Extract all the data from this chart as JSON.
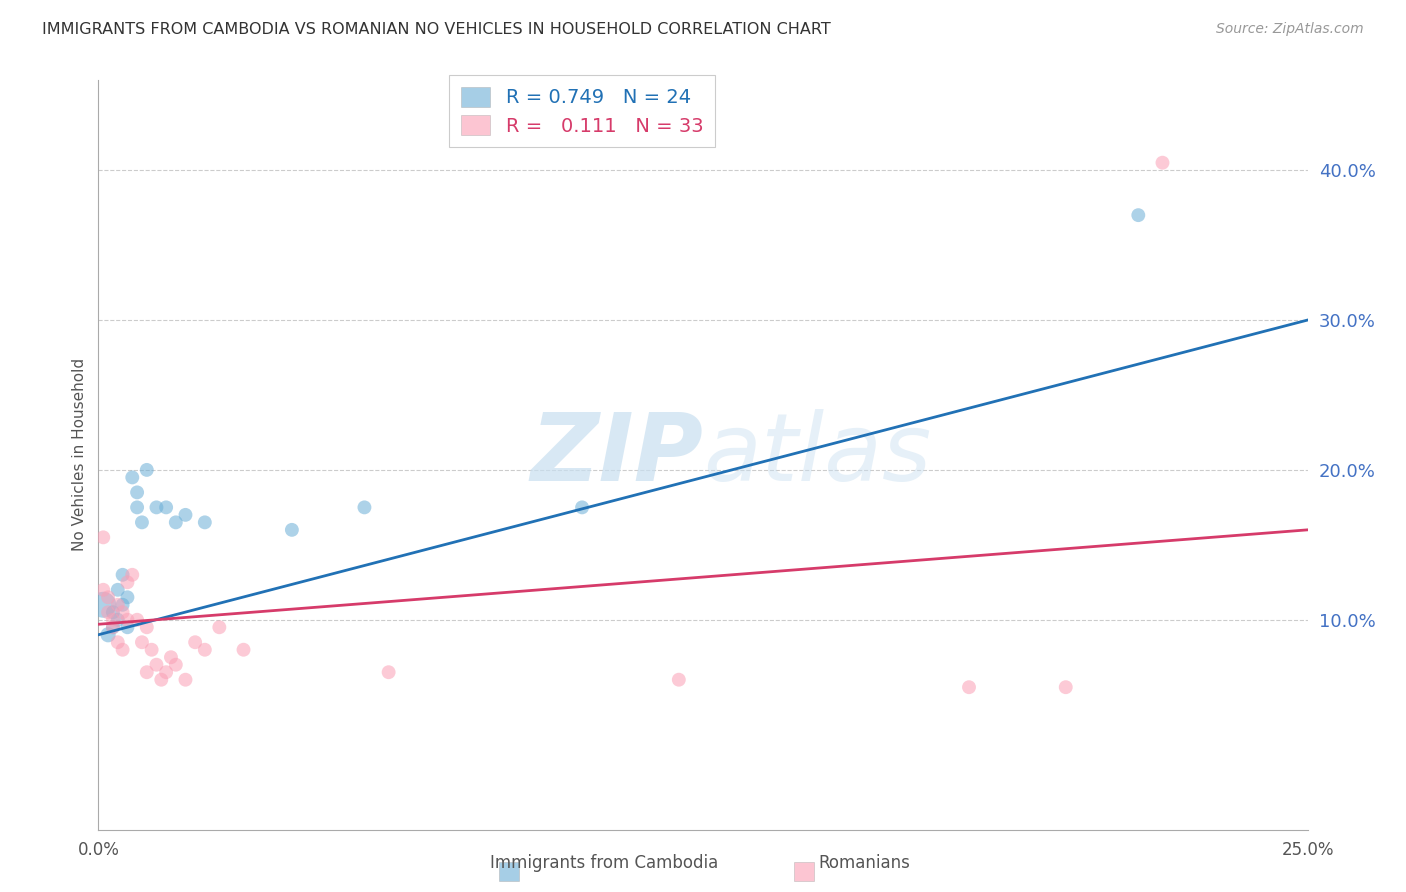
{
  "title": "IMMIGRANTS FROM CAMBODIA VS ROMANIAN NO VEHICLES IN HOUSEHOLD CORRELATION CHART",
  "source": "Source: ZipAtlas.com",
  "ylabel": "No Vehicles in Household",
  "ytick_labels": [
    "10.0%",
    "20.0%",
    "30.0%",
    "40.0%"
  ],
  "ytick_values": [
    0.1,
    0.2,
    0.3,
    0.4
  ],
  "xlim": [
    0.0,
    0.25
  ],
  "ylim": [
    -0.04,
    0.46
  ],
  "watermark": "ZIPatlas",
  "cambodia_color": "#6baed6",
  "romanian_color": "#fa9fb5",
  "cambodia_line_color": "#2171b5",
  "romanian_line_color": "#d63b6a",
  "legend_R_cambodia": "0.749",
  "legend_N_cambodia": "24",
  "legend_R_romanian": "0.111",
  "legend_N_romanian": "33",
  "cambodia_x": [
    0.001,
    0.002,
    0.003,
    0.003,
    0.004,
    0.004,
    0.005,
    0.005,
    0.006,
    0.006,
    0.007,
    0.008,
    0.008,
    0.009,
    0.01,
    0.012,
    0.014,
    0.016,
    0.018,
    0.022,
    0.04,
    0.055,
    0.1,
    0.215
  ],
  "cambodia_y": [
    0.11,
    0.09,
    0.095,
    0.105,
    0.1,
    0.12,
    0.11,
    0.13,
    0.115,
    0.095,
    0.195,
    0.185,
    0.175,
    0.165,
    0.2,
    0.175,
    0.175,
    0.165,
    0.17,
    0.165,
    0.16,
    0.175,
    0.175,
    0.37
  ],
  "cambodia_sizes": [
    350,
    120,
    100,
    100,
    100,
    100,
    100,
    100,
    100,
    100,
    100,
    100,
    100,
    100,
    100,
    100,
    100,
    100,
    100,
    100,
    100,
    100,
    100,
    100
  ],
  "romanian_x": [
    0.001,
    0.001,
    0.002,
    0.002,
    0.003,
    0.003,
    0.004,
    0.004,
    0.005,
    0.005,
    0.006,
    0.006,
    0.007,
    0.008,
    0.009,
    0.01,
    0.01,
    0.011,
    0.012,
    0.013,
    0.014,
    0.015,
    0.016,
    0.018,
    0.02,
    0.022,
    0.025,
    0.03,
    0.06,
    0.12,
    0.18,
    0.2,
    0.22
  ],
  "romanian_y": [
    0.155,
    0.12,
    0.105,
    0.115,
    0.095,
    0.1,
    0.11,
    0.085,
    0.105,
    0.08,
    0.1,
    0.125,
    0.13,
    0.1,
    0.085,
    0.095,
    0.065,
    0.08,
    0.07,
    0.06,
    0.065,
    0.075,
    0.07,
    0.06,
    0.085,
    0.08,
    0.095,
    0.08,
    0.065,
    0.06,
    0.055,
    0.055,
    0.405
  ],
  "romanian_sizes": [
    100,
    100,
    100,
    100,
    100,
    100,
    100,
    100,
    100,
    100,
    100,
    100,
    100,
    100,
    100,
    100,
    100,
    100,
    100,
    100,
    100,
    100,
    100,
    100,
    100,
    100,
    100,
    100,
    100,
    100,
    100,
    100,
    100
  ],
  "cambodia_line": [
    0.0,
    0.09,
    0.25,
    0.3
  ],
  "romanian_line": [
    0.0,
    0.097,
    0.25,
    0.16
  ]
}
